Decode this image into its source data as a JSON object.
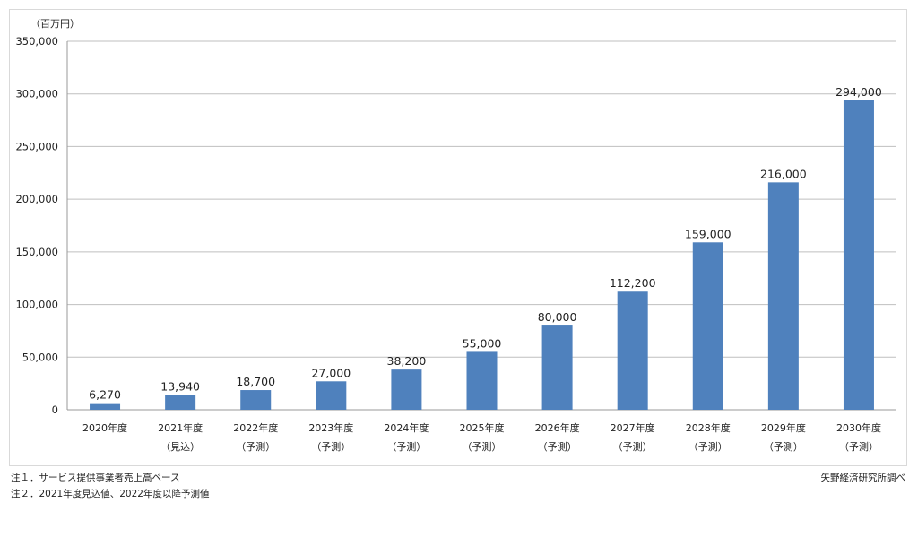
{
  "footnotes": {
    "note1": "注１．サービス提供事業者売上高ベース",
    "note2": "注２．2021年度見込値、2022年度以降予測値",
    "source": "矢野経済研究所調べ"
  },
  "chart_data": {
    "type": "bar",
    "title": "",
    "xlabel": "",
    "ylabel": "",
    "unit_label": "（百万円）",
    "categories": [
      [
        "2020年度",
        ""
      ],
      [
        "2021年度",
        "（見込）"
      ],
      [
        "2022年度",
        "（予測）"
      ],
      [
        "2023年度",
        "（予測）"
      ],
      [
        "2024年度",
        "（予測）"
      ],
      [
        "2025年度",
        "（予測）"
      ],
      [
        "2026年度",
        "（予測）"
      ],
      [
        "2027年度",
        "（予測）"
      ],
      [
        "2028年度",
        "（予測）"
      ],
      [
        "2029年度",
        "（予測）"
      ],
      [
        "2030年度",
        "（予測）"
      ]
    ],
    "values": [
      6270,
      13940,
      18700,
      27000,
      38200,
      55000,
      80000,
      112200,
      159000,
      216000,
      294000
    ],
    "data_labels": [
      "6,270",
      "13,940",
      "18,700",
      "27,000",
      "38,200",
      "55,000",
      "80,000",
      "112,200",
      "159,000",
      "216,000",
      "294,000"
    ],
    "yticks": [
      0,
      50000,
      100000,
      150000,
      200000,
      250000,
      300000,
      350000
    ],
    "ytick_labels": [
      "0",
      "50,000",
      "100,000",
      "150,000",
      "200,000",
      "250,000",
      "300,000",
      "350,000"
    ],
    "ylim": [
      0,
      350000
    ],
    "grid": true,
    "bar_color": "#4f81bd",
    "grid_color": "#bfbfbf",
    "legend": "none"
  }
}
